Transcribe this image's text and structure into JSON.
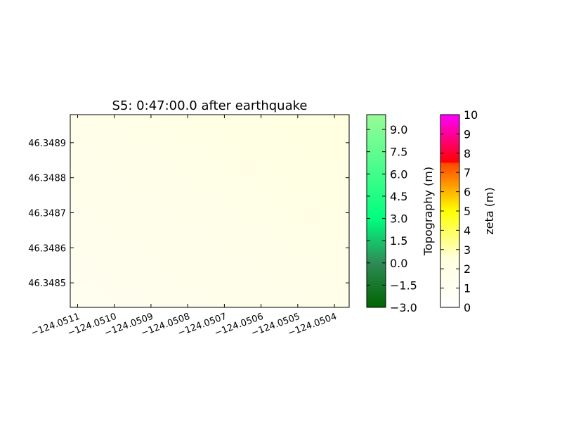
{
  "chart_data": {
    "type": "heatmap",
    "title": "S5: 0:47:00.0 after earthquake",
    "xlabel": "",
    "ylabel": "",
    "x_ticks": [
      -124.0511,
      -124.051,
      -124.0509,
      -124.0508,
      -124.0507,
      -124.0506,
      -124.0505,
      -124.0504
    ],
    "x_tick_labels": [
      "−124.0511",
      "−124.0510",
      "−124.0509",
      "−124.0508",
      "−124.0507",
      "−124.0506",
      "−124.0505",
      "−124.0504"
    ],
    "xlim": [
      -124.05112,
      -124.05036
    ],
    "y_ticks": [
      46.3485,
      46.3486,
      46.3487,
      46.3488,
      46.3489
    ],
    "y_tick_labels": [
      "46.3485",
      "46.3486",
      "46.3487",
      "46.3488",
      "46.3489"
    ],
    "ylim": [
      46.34843,
      46.34898
    ],
    "field": {
      "quantity": "zeta",
      "units": "m",
      "min_value": 1.4,
      "max_value": 1.8,
      "colors": [
        "#fffef0",
        "#ffffe0"
      ]
    },
    "colorbars": [
      {
        "name": "topography",
        "label": "Topography (m)",
        "range": [
          -3.0,
          10.0
        ],
        "ticks": [
          -3.0,
          -1.5,
          0.0,
          1.5,
          3.0,
          4.5,
          6.0,
          7.5,
          9.0
        ],
        "tick_labels": [
          "−3.0",
          "−1.5",
          "0.0",
          "1.5",
          "3.0",
          "4.5",
          "6.0",
          "7.5",
          "9.0"
        ],
        "stops": [
          {
            "value": -3.0,
            "color": "#006400"
          },
          {
            "value": 0.0,
            "color": "#2e8b57"
          },
          {
            "value": 3.0,
            "color": "#00ff7f"
          },
          {
            "value": 10.0,
            "color": "#98fb98"
          }
        ]
      },
      {
        "name": "zeta",
        "label": "zeta (m)",
        "range": [
          0,
          10
        ],
        "ticks": [
          0,
          1,
          2,
          3,
          4,
          5,
          6,
          7,
          8,
          9,
          10
        ],
        "tick_labels": [
          "0",
          "1",
          "2",
          "3",
          "4",
          "5",
          "6",
          "7",
          "8",
          "9",
          "10"
        ],
        "stops": [
          {
            "value": 0,
            "color": "#ffffff"
          },
          {
            "value": 2.5,
            "color": "#ffffe0"
          },
          {
            "value": 5,
            "color": "#ffff00"
          },
          {
            "value": 7.5,
            "color": "#ff4500"
          },
          {
            "value": 7.51,
            "color": "#ff0000"
          },
          {
            "value": 10,
            "color": "#ff00ff"
          }
        ]
      }
    ],
    "grid": false,
    "legend": "none"
  }
}
